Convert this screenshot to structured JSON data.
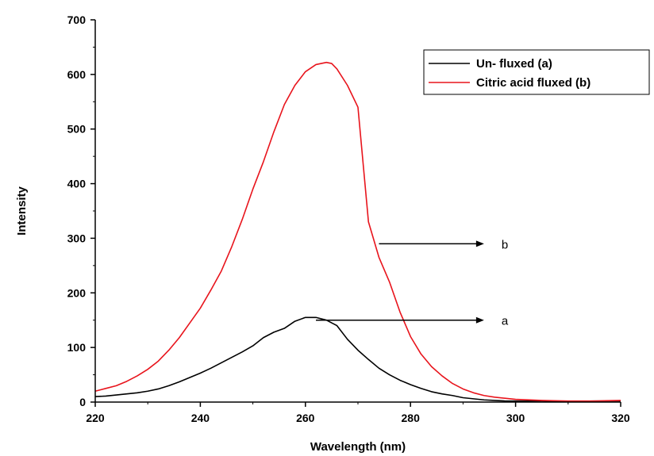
{
  "chart_data": {
    "type": "line",
    "title": "",
    "xlabel": "Wavelength (nm)",
    "ylabel": "Intensity",
    "xlim": [
      220,
      320
    ],
    "ylim": [
      0,
      700
    ],
    "x_ticks": [
      220,
      240,
      260,
      280,
      300,
      320
    ],
    "y_ticks": [
      0,
      100,
      200,
      300,
      400,
      500,
      600,
      700
    ],
    "grid": false,
    "legend_position": "top-right",
    "series": [
      {
        "name": "Un- fluxed (a)",
        "color": "#000000",
        "x": [
          220,
          222,
          224,
          226,
          228,
          230,
          232,
          234,
          236,
          238,
          240,
          242,
          244,
          246,
          248,
          250,
          252,
          254,
          256,
          258,
          260,
          262,
          264,
          266,
          268,
          270,
          272,
          274,
          276,
          278,
          280,
          282,
          284,
          286,
          288,
          290,
          292,
          294,
          296,
          298,
          300,
          305,
          310,
          315,
          320
        ],
        "y": [
          10,
          11,
          13,
          15,
          17,
          20,
          24,
          30,
          37,
          45,
          53,
          62,
          72,
          82,
          92,
          103,
          118,
          128,
          135,
          148,
          155,
          155,
          150,
          140,
          115,
          95,
          78,
          62,
          50,
          40,
          32,
          25,
          19,
          15,
          12,
          8,
          6,
          4,
          3,
          2,
          2,
          2,
          1,
          2,
          2
        ]
      },
      {
        "name": "Citric acid fluxed (b)",
        "color": "#e8141c",
        "x": [
          220,
          222,
          224,
          226,
          228,
          230,
          232,
          234,
          236,
          238,
          240,
          242,
          244,
          246,
          248,
          250,
          252,
          254,
          256,
          258,
          260,
          262,
          264,
          265,
          266,
          268,
          270,
          272,
          274,
          276,
          278,
          280,
          282,
          284,
          286,
          288,
          290,
          292,
          294,
          296,
          298,
          300,
          305,
          310,
          315,
          320
        ],
        "y": [
          20,
          25,
          30,
          38,
          48,
          60,
          75,
          95,
          118,
          145,
          172,
          205,
          240,
          285,
          335,
          390,
          440,
          495,
          545,
          580,
          605,
          618,
          622,
          620,
          610,
          580,
          540,
          330,
          265,
          220,
          165,
          120,
          88,
          65,
          48,
          34,
          24,
          17,
          12,
          9,
          7,
          5,
          3,
          2,
          2,
          3
        ]
      }
    ],
    "annotations": [
      {
        "text": "b",
        "arrow_from_x": 274,
        "arrow_to_x": 294,
        "y": 290
      },
      {
        "text": "a",
        "arrow_from_x": 262,
        "arrow_to_x": 294,
        "y": 150
      }
    ]
  }
}
